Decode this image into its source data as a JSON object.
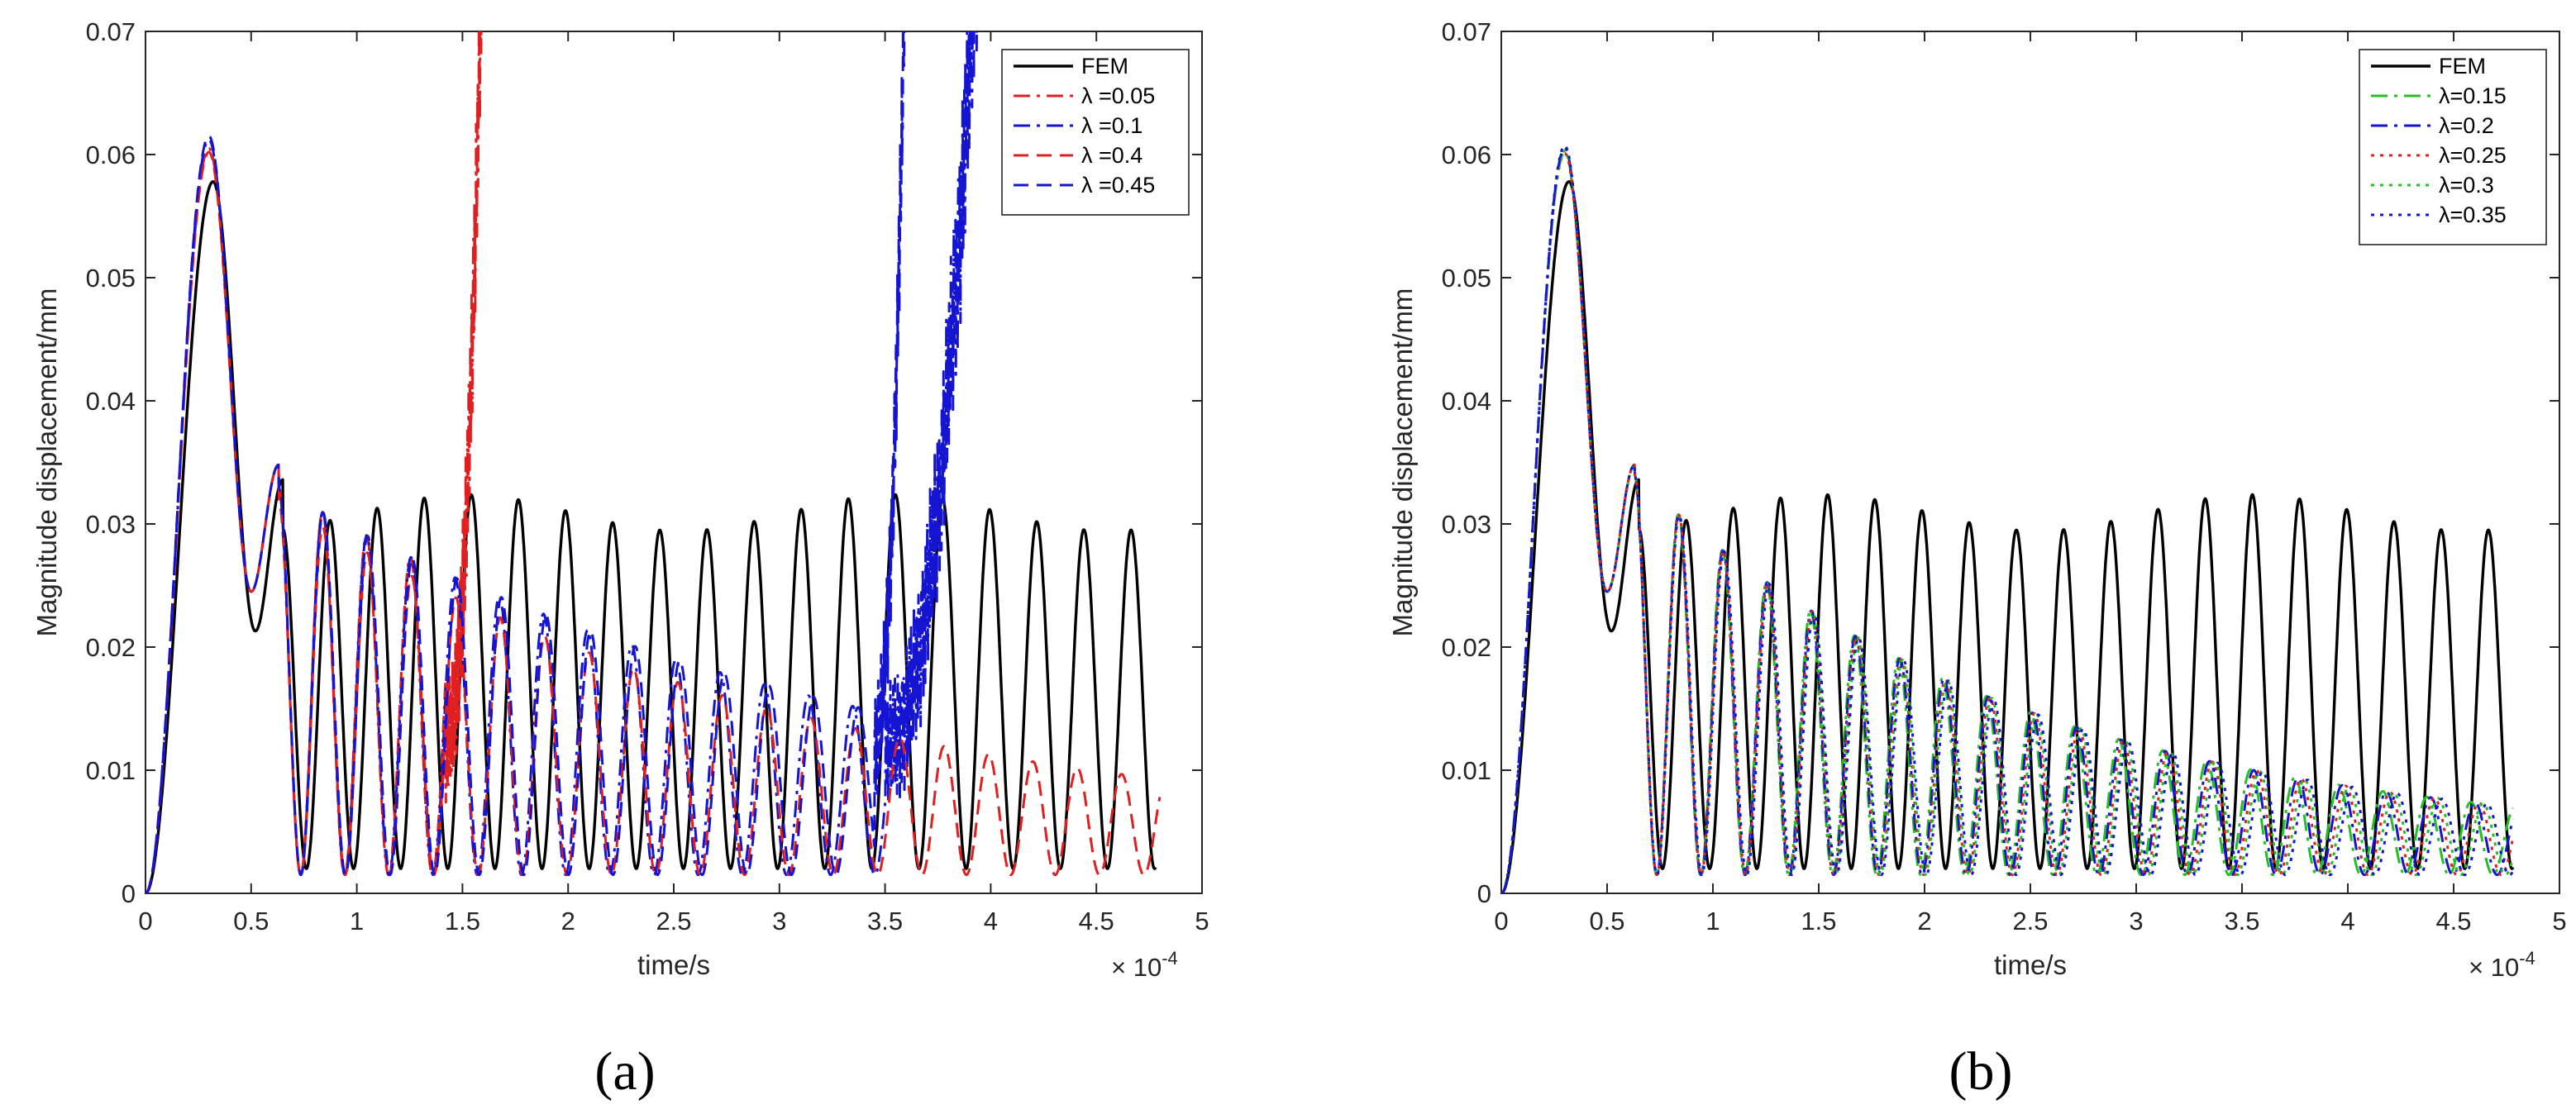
{
  "chart_data": [
    {
      "type": "line",
      "panel": "a",
      "caption": "(a)",
      "xlabel": "time/s",
      "ylabel": "Magnitude displacement/mm",
      "x_exponent": "× 10-4",
      "x_multiplier_base": "10",
      "x_multiplier_power": "-4",
      "xlim": [
        0,
        5
      ],
      "ylim": [
        0,
        0.07
      ],
      "xticks": [
        "0",
        "0.5",
        "1",
        "1.5",
        "2",
        "2.5",
        "3",
        "3.5",
        "4",
        "4.5",
        "5"
      ],
      "yticks": [
        "0",
        "0.01",
        "0.02",
        "0.03",
        "0.04",
        "0.05",
        "0.06",
        "0.07"
      ],
      "legend_position": "top-right",
      "series": [
        {
          "name": "FEM",
          "color": "#000000",
          "style": "solid",
          "peak": 0.0578,
          "osc_amp": 0.0315,
          "end_x": 4.78
        },
        {
          "name": "λ =0.05",
          "color": "#e02020",
          "style": "dashdot",
          "peak": 0.0605,
          "osc_amp": 0.029,
          "decay": 0.35,
          "diverge_at": 1.42,
          "end_x": 1.62
        },
        {
          "name": "λ =0.1",
          "color": "#1414d2",
          "style": "dashdot",
          "peak": 0.0612,
          "osc_amp": 0.029,
          "decay": 0.35,
          "diverge_at": 3.5,
          "end_x": 4.0
        },
        {
          "name": "λ =0.4",
          "color": "#e02020",
          "style": "dashed",
          "peak": 0.0602,
          "osc_amp": 0.028,
          "decay": 0.4,
          "end_x": 4.8
        },
        {
          "name": "λ =0.45",
          "color": "#1414d2",
          "style": "dashed",
          "peak": 0.0615,
          "osc_amp": 0.029,
          "decay": 0.35,
          "diverge_at": 3.45,
          "end_x": 3.62
        }
      ]
    },
    {
      "type": "line",
      "panel": "b",
      "caption": "(b)",
      "xlabel": "time/s",
      "ylabel": "Magnitude displacement/mm",
      "x_exponent": "× 10-4",
      "x_multiplier_base": "10",
      "x_multiplier_power": "-4",
      "xlim": [
        0,
        5
      ],
      "ylim": [
        0,
        0.07
      ],
      "xticks": [
        "0",
        "0.5",
        "1",
        "1.5",
        "2",
        "2.5",
        "3",
        "3.5",
        "4",
        "4.5",
        "5"
      ],
      "yticks": [
        "0",
        "0.01",
        "0.02",
        "0.03",
        "0.04",
        "0.05",
        "0.06",
        "0.07"
      ],
      "legend_position": "top-right",
      "series": [
        {
          "name": "FEM",
          "color": "#000000",
          "style": "solid",
          "peak": 0.0578,
          "osc_amp": 0.0315,
          "end_x": 4.78
        },
        {
          "name": "λ=0.15",
          "color": "#22c022",
          "style": "dashdot",
          "peak": 0.0602,
          "osc_amp": 0.03,
          "decay": 0.55,
          "end_x": 4.78
        },
        {
          "name": "λ=0.2",
          "color": "#1414d2",
          "style": "dashdot",
          "peak": 0.0605,
          "osc_amp": 0.03,
          "decay": 0.55,
          "end_x": 4.78
        },
        {
          "name": "λ=0.25",
          "color": "#e02020",
          "style": "dotted",
          "peak": 0.0601,
          "osc_amp": 0.03,
          "decay": 0.55,
          "end_x": 4.78
        },
        {
          "name": "λ=0.3",
          "color": "#22c022",
          "style": "dotted",
          "peak": 0.0603,
          "osc_amp": 0.03,
          "decay": 0.55,
          "end_x": 4.78
        },
        {
          "name": "λ=0.35",
          "color": "#1414d2",
          "style": "dotted",
          "peak": 0.0607,
          "osc_amp": 0.03,
          "decay": 0.55,
          "end_x": 4.78
        }
      ]
    }
  ]
}
